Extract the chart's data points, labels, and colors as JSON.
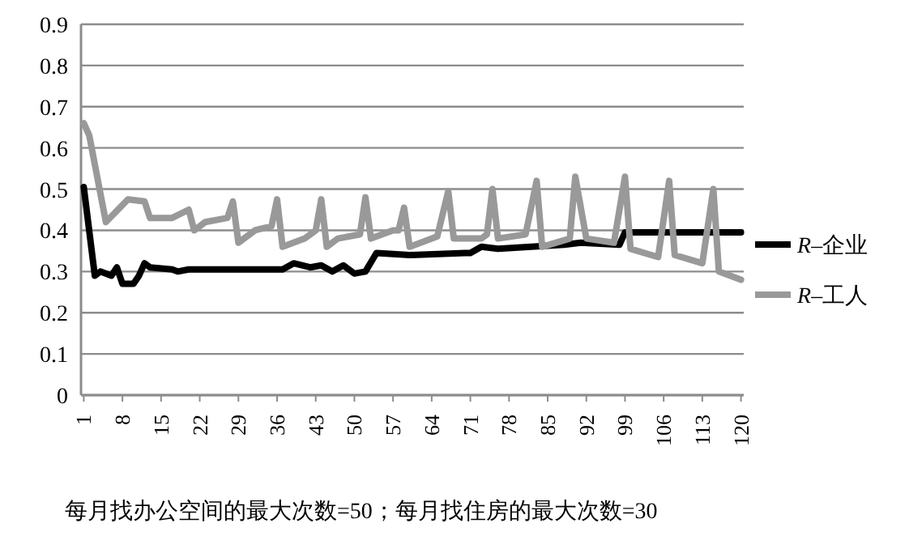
{
  "chart_data": {
    "type": "line",
    "xlabel": "每月找办公空间的最大次数=50；每月找住房的最大次数=30",
    "xlim": [
      0.5,
      120.5
    ],
    "xticks": [
      1,
      8,
      15,
      22,
      29,
      36,
      43,
      50,
      57,
      64,
      71,
      78,
      85,
      92,
      99,
      106,
      113,
      120
    ],
    "ylim": [
      0,
      0.9
    ],
    "yticks": [
      0,
      0.1,
      0.2,
      0.3,
      0.4,
      0.5,
      0.6,
      0.7,
      0.8,
      0.9
    ],
    "grid": "y",
    "legend": "right",
    "series": [
      {
        "name": "*R*–企业",
        "color": "#000000",
        "x": [
          1,
          3,
          4,
          6,
          7,
          8,
          10,
          11,
          12,
          13,
          17,
          18,
          20,
          37,
          39,
          42,
          44,
          46,
          48,
          50,
          52,
          54,
          60,
          70,
          71,
          73,
          76,
          82,
          88,
          91,
          98,
          99,
          120
        ],
        "values": [
          0.505,
          0.29,
          0.3,
          0.29,
          0.31,
          0.27,
          0.27,
          0.29,
          0.32,
          0.31,
          0.305,
          0.3,
          0.305,
          0.305,
          0.32,
          0.31,
          0.315,
          0.3,
          0.315,
          0.295,
          0.3,
          0.345,
          0.34,
          0.345,
          0.345,
          0.36,
          0.355,
          0.36,
          0.365,
          0.37,
          0.365,
          0.395,
          0.395
        ]
      },
      {
        "name": "*R*–工人",
        "color": "#999999",
        "x": [
          1,
          2,
          5,
          9,
          12,
          13,
          17,
          20,
          21,
          23,
          27,
          28,
          29,
          32,
          35,
          36,
          37,
          41,
          43,
          44,
          45,
          47,
          51,
          52,
          53,
          57,
          58,
          59,
          60,
          65,
          67,
          68,
          73,
          74,
          75,
          76,
          81,
          83,
          84,
          89,
          90,
          92,
          97,
          99,
          100,
          105,
          107,
          108,
          113,
          115,
          116,
          120
        ],
        "values": [
          0.66,
          0.63,
          0.42,
          0.475,
          0.47,
          0.43,
          0.43,
          0.45,
          0.4,
          0.42,
          0.43,
          0.47,
          0.37,
          0.4,
          0.41,
          0.475,
          0.36,
          0.38,
          0.4,
          0.475,
          0.36,
          0.38,
          0.39,
          0.48,
          0.38,
          0.4,
          0.4,
          0.455,
          0.36,
          0.385,
          0.495,
          0.38,
          0.38,
          0.39,
          0.5,
          0.38,
          0.39,
          0.52,
          0.36,
          0.38,
          0.53,
          0.38,
          0.37,
          0.53,
          0.355,
          0.335,
          0.52,
          0.34,
          0.32,
          0.5,
          0.3,
          0.28
        ]
      }
    ]
  }
}
